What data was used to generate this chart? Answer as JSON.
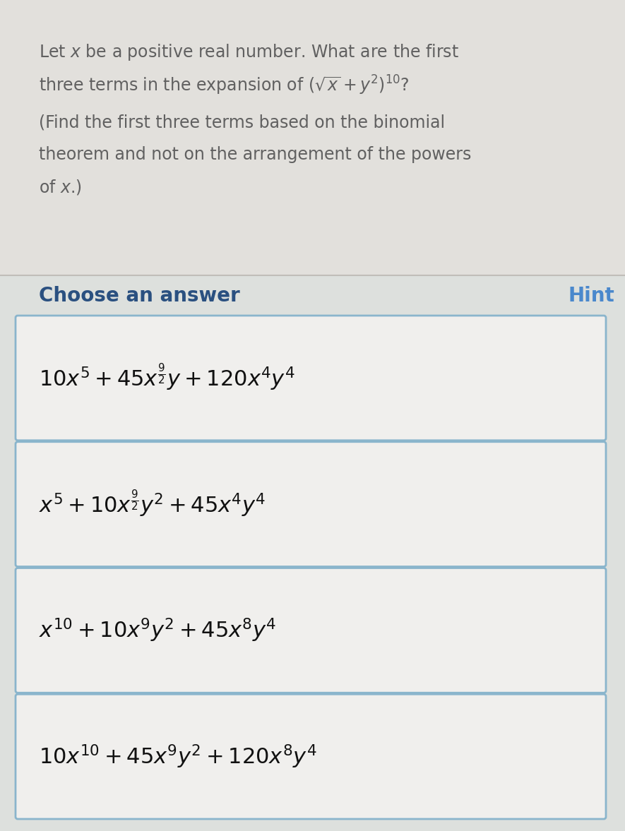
{
  "bg_top": "#dde0dd",
  "bg_bottom": "#c8c5c0",
  "question_bg": "#e2e0dc",
  "box_bg": "#f0efed",
  "box_border": "#8ab5cc",
  "title_color": "#606060",
  "choose_color": "#2a5080",
  "hint_color": "#4a88cc",
  "math_color": "#111111",
  "sep_color": "#c0bdb8",
  "figsize": [
    8.85,
    11.77
  ],
  "dpi": 100,
  "choose_answer": "Choose an answer",
  "hint_text": "Hint",
  "options": [
    "$10x^5 + 45x^{\\frac{9}{2}}y + 120x^4y^4$",
    "$x^5 + 10x^{\\frac{9}{2}}y^2 + 45x^4y^4$",
    "$x^{10} + 10x^9y^2 + 45x^8y^4$",
    "$10x^{10} + 45x^9y^2 + 120x^8y^4$"
  ]
}
